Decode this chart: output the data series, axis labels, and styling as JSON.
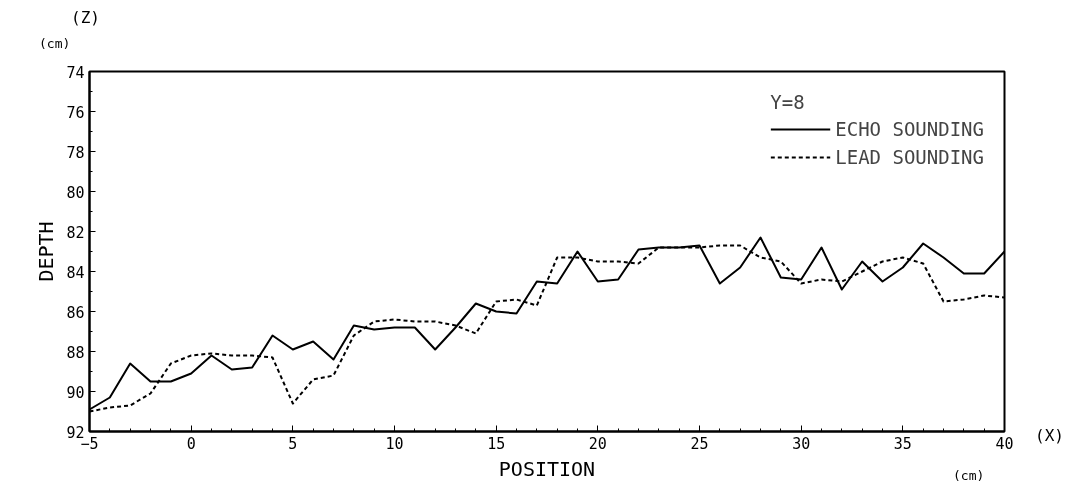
{
  "chart_data": {
    "type": "line",
    "xlabel": "POSITION",
    "ylabel": "DEPTH",
    "legend_title": "Υ=8",
    "annotations": [
      "(Z)",
      "(cm)",
      "(X)",
      "(cm)"
    ],
    "x": [
      -5,
      -4,
      -3,
      -2,
      -1,
      0,
      1,
      2,
      3,
      4,
      5,
      6,
      7,
      8,
      9,
      10,
      11,
      12,
      13,
      14,
      15,
      16,
      17,
      18,
      19,
      20,
      21,
      22,
      23,
      24,
      25,
      26,
      27,
      28,
      29,
      30,
      31,
      32,
      33,
      34,
      35,
      36,
      37,
      38,
      39,
      40
    ],
    "series": [
      {
        "name": "ECHO SOUNDING",
        "color": "#000000",
        "line_style": "solid",
        "values": [
          90.9,
          90.3,
          88.6,
          89.5,
          89.5,
          89.1,
          88.2,
          88.9,
          88.8,
          87.2,
          87.9,
          87.5,
          88.4,
          86.7,
          86.9,
          86.8,
          86.8,
          87.9,
          86.8,
          85.6,
          86.0,
          86.1,
          84.5,
          84.6,
          83.0,
          84.5,
          84.4,
          82.9,
          82.8,
          82.8,
          82.7,
          84.6,
          83.8,
          82.3,
          84.3,
          84.4,
          82.8,
          84.9,
          83.5,
          84.5,
          83.8,
          82.6,
          83.3,
          84.1,
          84.1,
          83.0
        ]
      },
      {
        "name": "LEAD SOUNDING",
        "color": "#000000",
        "line_style": "dashed",
        "values": [
          91.0,
          90.8,
          90.7,
          90.1,
          88.6,
          88.2,
          88.1,
          88.2,
          88.2,
          88.3,
          90.6,
          89.4,
          89.2,
          87.2,
          86.5,
          86.4,
          86.5,
          86.5,
          86.7,
          87.1,
          85.5,
          85.4,
          85.7,
          83.3,
          83.3,
          83.5,
          83.5,
          83.6,
          82.8,
          82.8,
          82.8,
          82.7,
          82.7,
          83.3,
          83.5,
          84.6,
          84.4,
          84.5,
          84.0,
          83.5,
          83.3,
          83.6,
          85.5,
          85.4,
          85.2,
          85.3
        ]
      }
    ],
    "xlim": [
      -5,
      40
    ],
    "xticks": [
      -5,
      0,
      5,
      10,
      15,
      20,
      25,
      30,
      35,
      40
    ],
    "ylim": [
      92,
      74
    ],
    "yticks": [
      74,
      76,
      78,
      80,
      82,
      84,
      86,
      88,
      90,
      92
    ],
    "grid": false,
    "legend": "top right"
  }
}
